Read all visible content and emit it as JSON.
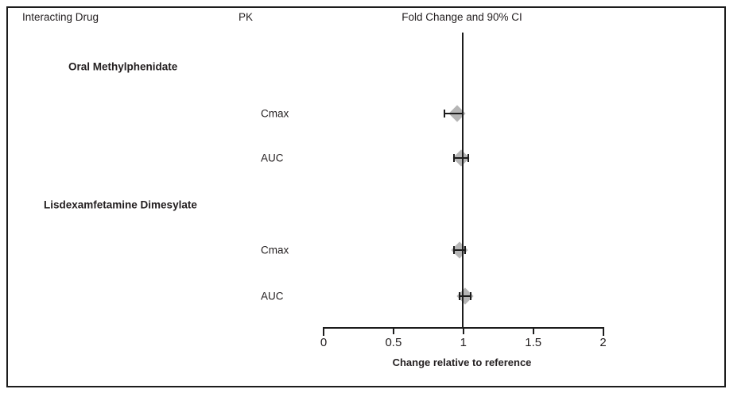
{
  "header": {
    "interacting_drug": "Interacting Drug",
    "pk": "PK",
    "fold_change": "Fold Change and 90% CI"
  },
  "chart_data": {
    "type": "forest",
    "title": "Fold Change and 90% CI",
    "xlabel": "Change relative to reference",
    "xlim": [
      0,
      2
    ],
    "xticks": [
      "0",
      "0.5",
      "1",
      "1.5",
      "2"
    ],
    "reference_line": 1.0,
    "ci_level": "90%",
    "groups": [
      {
        "name": "Oral Methylphenidate",
        "rows": [
          {
            "param": "Cmax",
            "estimate": 0.96,
            "ci_low": 0.87,
            "ci_high": 1.0
          },
          {
            "param": "AUC",
            "estimate": 0.99,
            "ci_low": 0.94,
            "ci_high": 1.04
          }
        ]
      },
      {
        "name": "Lisdexamfetamine Dimesylate",
        "rows": [
          {
            "param": "Cmax",
            "estimate": 0.98,
            "ci_low": 0.94,
            "ci_high": 1.02
          },
          {
            "param": "AUC",
            "estimate": 1.02,
            "ci_low": 0.98,
            "ci_high": 1.06
          }
        ]
      }
    ]
  },
  "colors": {
    "marker_fill": "#b5b5b5",
    "line": "#1c1c1c",
    "text": "#231f20"
  }
}
